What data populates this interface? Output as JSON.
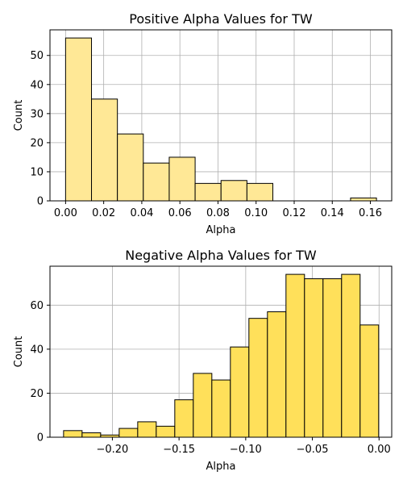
{
  "chart_data": [
    {
      "type": "histogram",
      "title": "Positive Alpha Values for TW",
      "xlabel": "Alpha",
      "ylabel": "Count",
      "bar_color": "#ffe896",
      "edge_color": "#000000",
      "grid": true,
      "xlim": [
        -0.0082,
        0.1712
      ],
      "ylim": [
        0,
        58.8
      ],
      "xticks": [
        0.0,
        0.02,
        0.04,
        0.06,
        0.08,
        0.1,
        0.12,
        0.14,
        0.16
      ],
      "xtick_labels": [
        "0.00",
        "0.02",
        "0.04",
        "0.06",
        "0.08",
        "0.10",
        "0.12",
        "0.14",
        "0.16"
      ],
      "yticks": [
        0,
        10,
        20,
        30,
        40,
        50
      ],
      "ytick_labels": [
        "0",
        "10",
        "20",
        "30",
        "40",
        "50"
      ],
      "bin_edges": [
        0.0,
        0.0136,
        0.0272,
        0.0408,
        0.0544,
        0.068,
        0.0816,
        0.0952,
        0.1088,
        0.1224,
        0.136,
        0.1496,
        0.1632
      ],
      "counts": [
        56,
        35,
        23,
        13,
        15,
        6,
        7,
        6,
        0,
        0,
        0,
        1
      ]
    },
    {
      "type": "histogram",
      "title": "Negative Alpha Values for TW",
      "xlabel": "Alpha",
      "ylabel": "Count",
      "bar_color": "#ffe05a",
      "edge_color": "#000000",
      "grid": true,
      "xlim": [
        -0.2468,
        0.0095
      ],
      "ylim": [
        0,
        77.7
      ],
      "xticks": [
        -0.2,
        -0.15,
        -0.1,
        -0.05,
        0.0
      ],
      "xtick_labels": [
        "−0.20",
        "−0.15",
        "−0.10",
        "−0.05",
        "0.00"
      ],
      "yticks": [
        0,
        20,
        40,
        60
      ],
      "ytick_labels": [
        "0",
        "20",
        "40",
        "60"
      ],
      "bin_edges": [
        -0.2366,
        -0.2227,
        -0.2088,
        -0.1949,
        -0.181,
        -0.1671,
        -0.1532,
        -0.1393,
        -0.1254,
        -0.1115,
        -0.0976,
        -0.0837,
        -0.0698,
        -0.0559,
        -0.042,
        -0.0281,
        -0.0142,
        -0.0003
      ],
      "counts": [
        3,
        2,
        1,
        4,
        7,
        5,
        17,
        29,
        26,
        41,
        54,
        57,
        74,
        72,
        72,
        74,
        51
      ]
    }
  ]
}
